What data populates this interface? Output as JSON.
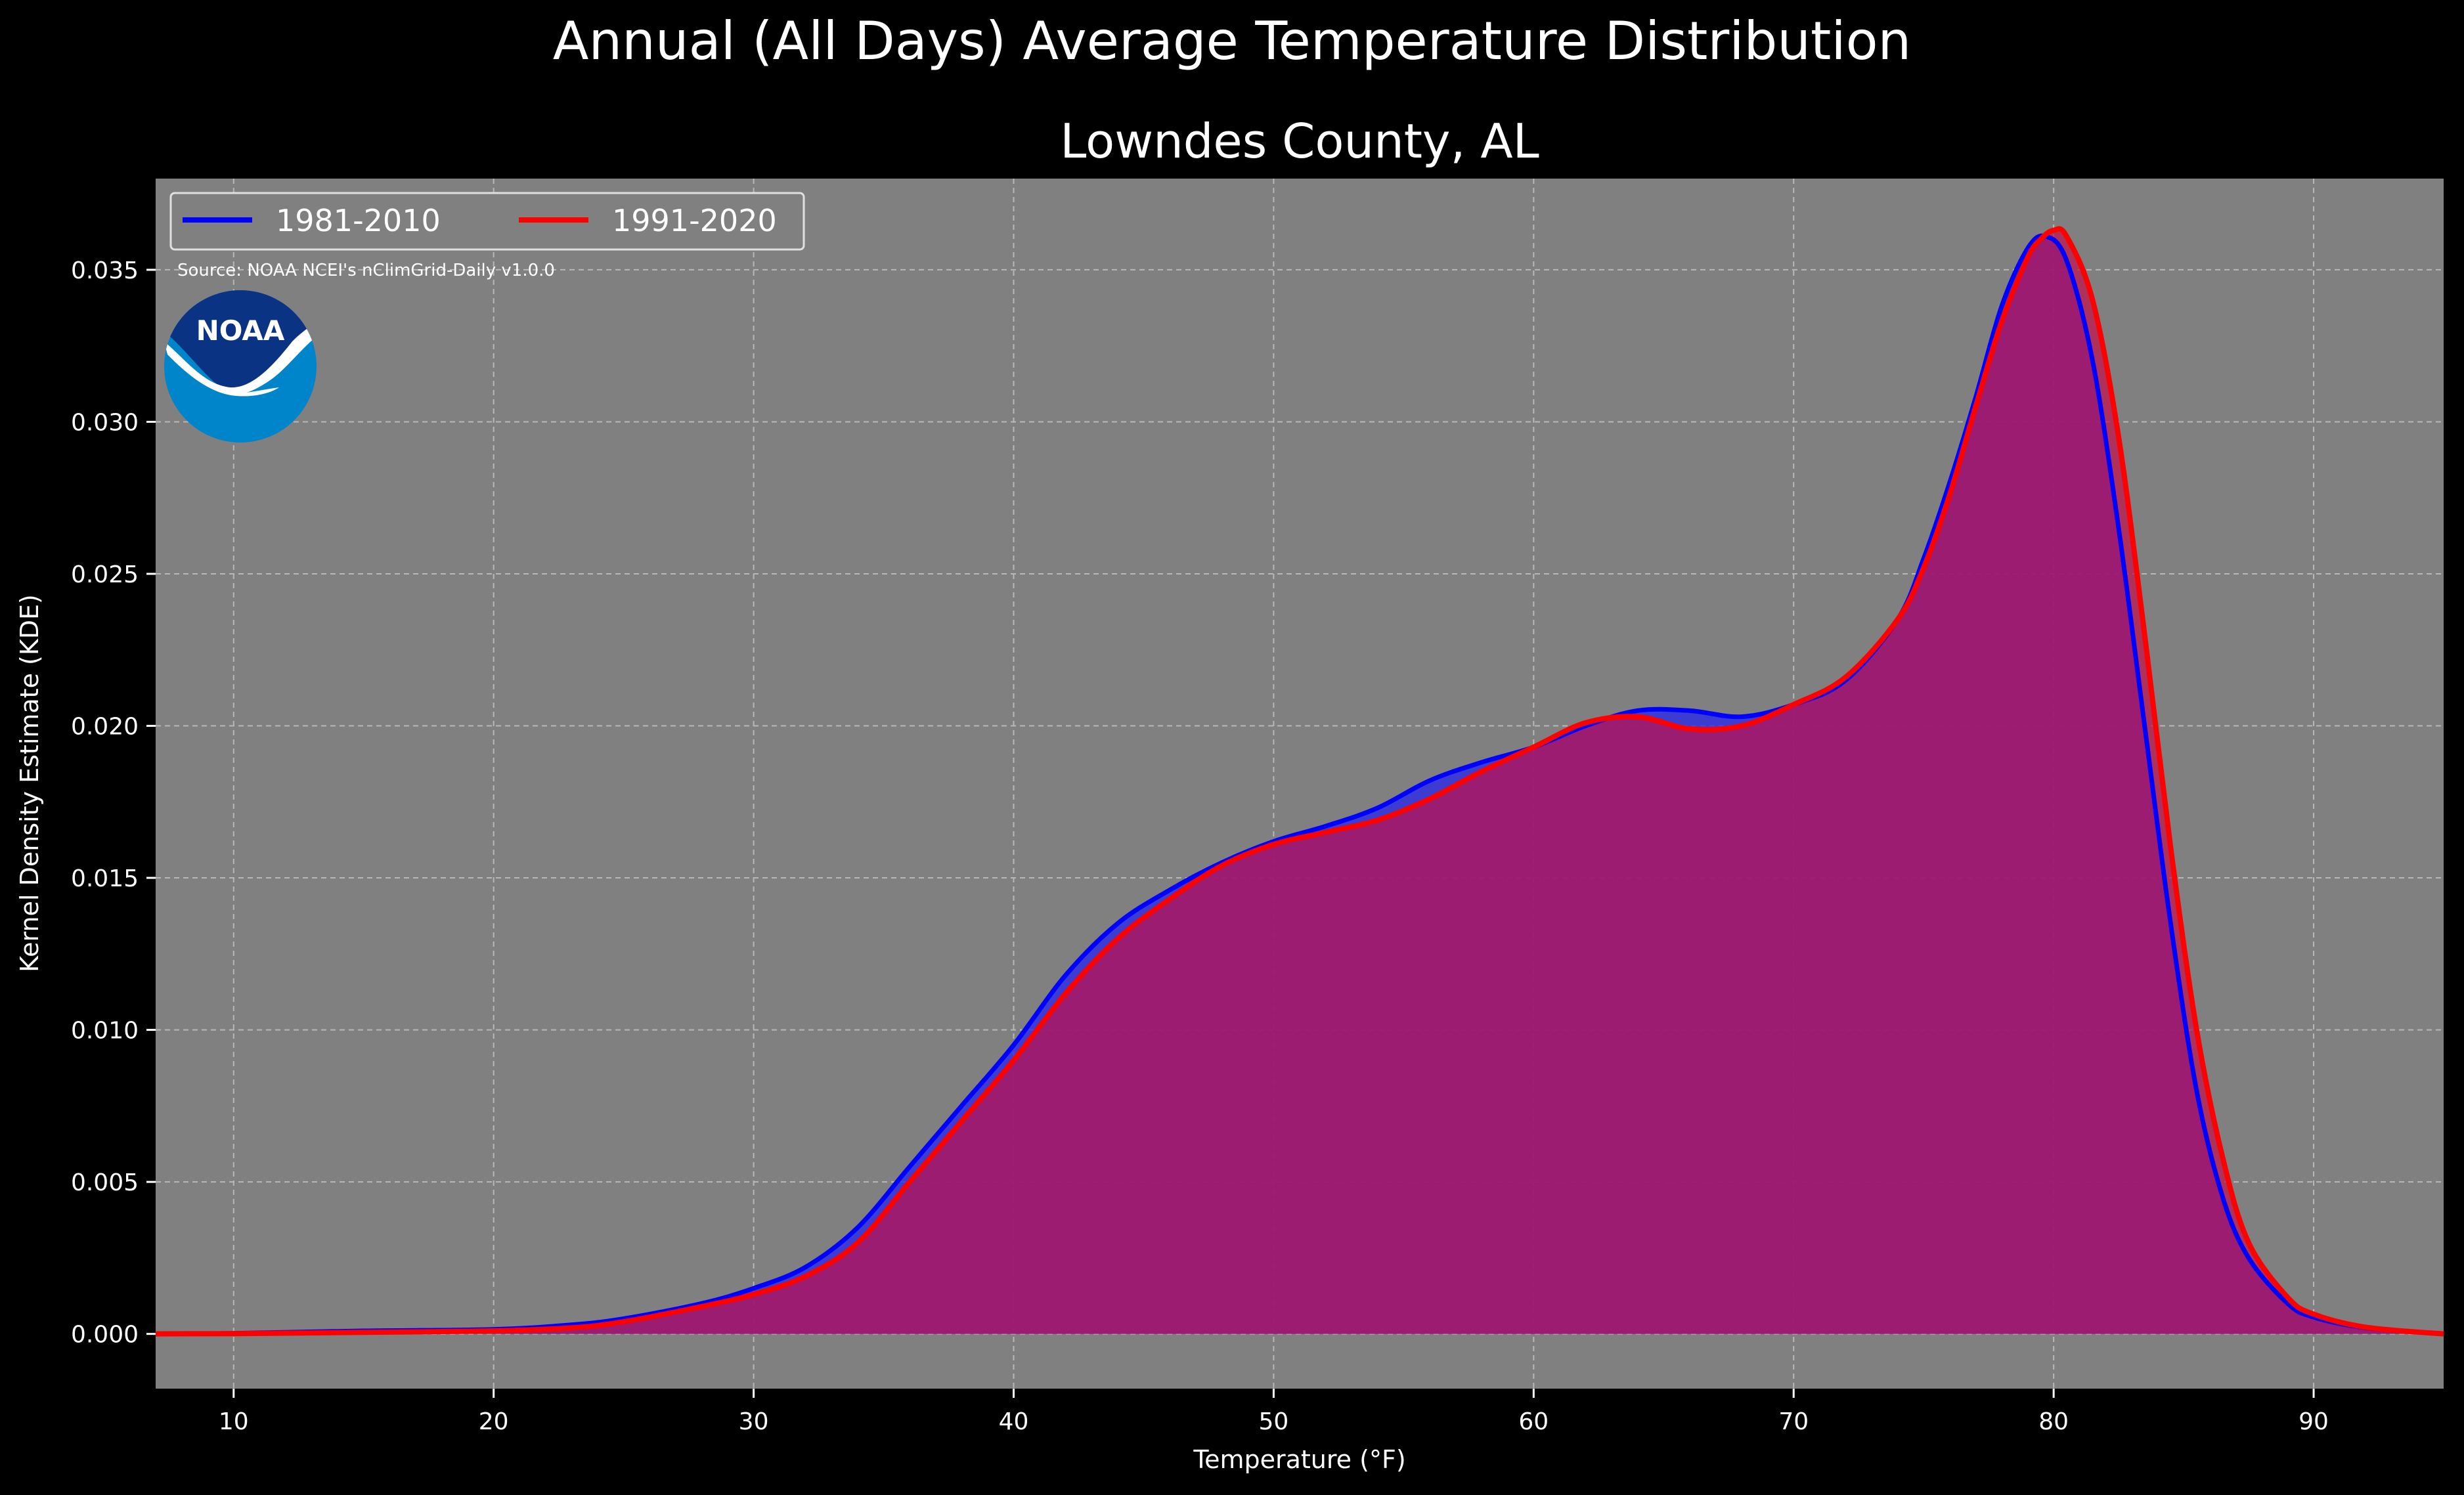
{
  "figure": {
    "suptitle": "Annual (All Days) Average Temperature Distribution",
    "source": "Source: NOAA NCEI's nClimGrid-Daily v1.0.0",
    "logo_text": "NOAA"
  },
  "colors": {
    "background": "#000000",
    "plot_background": "#808080",
    "series_1981": "#0000ff",
    "series_1991": "#ff0000",
    "fill_overlap": "#9e1f5c",
    "text": "#ffffff",
    "logo_navy": "#0a3483",
    "logo_blue": "#0085ca"
  },
  "chart_data": {
    "type": "area",
    "title": "Lowndes County, AL",
    "xlabel": "Temperature (°F)",
    "ylabel": "Kernel Density Estimate (KDE)",
    "xlim": [
      7,
      95
    ],
    "ylim": [
      -0.0018,
      0.038
    ],
    "xticks": [
      10,
      20,
      30,
      40,
      50,
      60,
      70,
      80,
      90
    ],
    "yticks": [
      0.0,
      0.005,
      0.01,
      0.015,
      0.02,
      0.025,
      0.03,
      0.035
    ],
    "ytick_labels": [
      "0.000",
      "0.005",
      "0.010",
      "0.015",
      "0.020",
      "0.025",
      "0.030",
      "0.035"
    ],
    "grid": true,
    "legend": "top-left",
    "series": [
      {
        "name": "1981-2010",
        "color": "#0000ff",
        "points": [
          [
            7,
            0.0
          ],
          [
            10,
            2e-05
          ],
          [
            15,
            0.0001
          ],
          [
            20,
            0.00015
          ],
          [
            23,
            0.0003
          ],
          [
            25,
            0.0005
          ],
          [
            28,
            0.001
          ],
          [
            30,
            0.0015
          ],
          [
            32,
            0.0022
          ],
          [
            34,
            0.0035
          ],
          [
            36,
            0.0055
          ],
          [
            38,
            0.0075
          ],
          [
            40,
            0.0095
          ],
          [
            42,
            0.0118
          ],
          [
            44,
            0.0135
          ],
          [
            46,
            0.0146
          ],
          [
            48,
            0.0155
          ],
          [
            50,
            0.0162
          ],
          [
            52,
            0.0167
          ],
          [
            54,
            0.0173
          ],
          [
            56,
            0.0182
          ],
          [
            58,
            0.0188
          ],
          [
            60,
            0.0193
          ],
          [
            62,
            0.02
          ],
          [
            64,
            0.0205
          ],
          [
            66,
            0.0205
          ],
          [
            68,
            0.0203
          ],
          [
            70,
            0.0207
          ],
          [
            72,
            0.0215
          ],
          [
            74,
            0.0235
          ],
          [
            75,
            0.0255
          ],
          [
            76,
            0.028
          ],
          [
            77,
            0.0308
          ],
          [
            78,
            0.0338
          ],
          [
            79,
            0.0357
          ],
          [
            79.7,
            0.0361
          ],
          [
            80.5,
            0.0353
          ],
          [
            81.5,
            0.032
          ],
          [
            82.5,
            0.0265
          ],
          [
            83.5,
            0.02
          ],
          [
            84.5,
            0.0135
          ],
          [
            85.5,
            0.008
          ],
          [
            86.5,
            0.0045
          ],
          [
            87.5,
            0.0025
          ],
          [
            89,
            0.001
          ],
          [
            90,
            0.00055
          ],
          [
            92,
            0.0002
          ],
          [
            95,
            0.0
          ]
        ]
      },
      {
        "name": "1991-2020",
        "color": "#ff0000",
        "points": [
          [
            7,
            0.0
          ],
          [
            10,
            1e-05
          ],
          [
            15,
            5e-05
          ],
          [
            20,
            0.0001
          ],
          [
            23,
            0.0002
          ],
          [
            25,
            0.0004
          ],
          [
            28,
            0.0009
          ],
          [
            30,
            0.0013
          ],
          [
            32,
            0.0019
          ],
          [
            34,
            0.003
          ],
          [
            36,
            0.005
          ],
          [
            38,
            0.007
          ],
          [
            40,
            0.009
          ],
          [
            42,
            0.0112
          ],
          [
            44,
            0.013
          ],
          [
            46,
            0.0143
          ],
          [
            48,
            0.0154
          ],
          [
            50,
            0.0161
          ],
          [
            52,
            0.0165
          ],
          [
            54,
            0.0169
          ],
          [
            56,
            0.0176
          ],
          [
            58,
            0.0185
          ],
          [
            60,
            0.0193
          ],
          [
            62,
            0.0201
          ],
          [
            64,
            0.0203
          ],
          [
            66,
            0.0199
          ],
          [
            68,
            0.02
          ],
          [
            70,
            0.0207
          ],
          [
            72,
            0.0216
          ],
          [
            74,
            0.0235
          ],
          [
            75,
            0.0252
          ],
          [
            76,
            0.0276
          ],
          [
            77,
            0.0305
          ],
          [
            78,
            0.0333
          ],
          [
            79,
            0.0354
          ],
          [
            79.5,
            0.036
          ],
          [
            80,
            0.0363
          ],
          [
            80.5,
            0.0361
          ],
          [
            81.5,
            0.034
          ],
          [
            82.5,
            0.0295
          ],
          [
            83.5,
            0.023
          ],
          [
            84.5,
            0.016
          ],
          [
            85.5,
            0.01
          ],
          [
            86.5,
            0.0058
          ],
          [
            87.5,
            0.003
          ],
          [
            89,
            0.0012
          ],
          [
            90,
            0.00065
          ],
          [
            92,
            0.00022
          ],
          [
            95,
            0.0
          ]
        ]
      }
    ]
  }
}
